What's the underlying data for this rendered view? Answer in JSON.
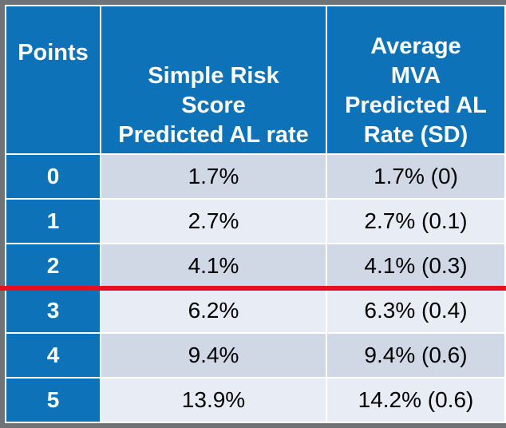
{
  "table": {
    "headers": {
      "points": "Points",
      "simple_lines": [
        "Simple Risk",
        "Score",
        "Predicted AL rate"
      ],
      "avg_lines": [
        "Average",
        "MVA",
        "Predicted AL",
        "Rate (SD)"
      ]
    },
    "rows": [
      {
        "points": "0",
        "simple": "1.7%",
        "mva": "1.7% (0)"
      },
      {
        "points": "1",
        "simple": "2.7%",
        "mva": "2.7% (0.1)"
      },
      {
        "points": "2",
        "simple": "4.1%",
        "mva": "4.1% (0.3)"
      },
      {
        "points": "3",
        "simple": "6.2%",
        "mva": "6.3% (0.4)"
      },
      {
        "points": "4",
        "simple": "9.4%",
        "mva": "9.4% (0.6)"
      },
      {
        "points": "5",
        "simple": "13.9%",
        "mva": "14.2% (0.6)"
      }
    ]
  },
  "colors": {
    "header_blue": "#0e72b8",
    "row_dark": "#d0d8e6",
    "row_light": "#e8ecf4",
    "divider_red": "#e8101e",
    "background": "#6e7378"
  }
}
